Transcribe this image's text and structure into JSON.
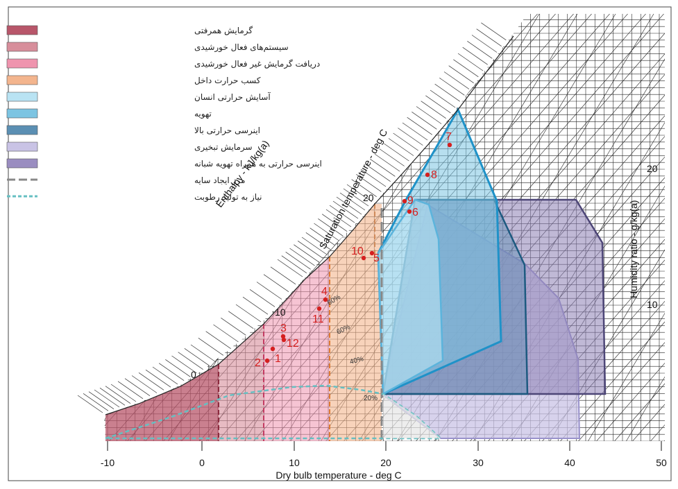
{
  "axes": {
    "x_title": "Dry bulb temperature - deg C",
    "x_ticks": [
      "-10",
      "0",
      "10",
      "20",
      "30",
      "40",
      "50"
    ],
    "enthalpy_title": "Enthalpy - kJ/kg(a)",
    "saturation_title": "Saturation temperature - deg C",
    "humidity_title": "Humidity ratio - g/kg(a)",
    "saturation_ticks": [
      "0",
      "10",
      "20"
    ],
    "humidity_ticks": [
      "10",
      "20"
    ]
  },
  "rh_labels": [
    "80%",
    "60%",
    "40%",
    "20%"
  ],
  "legend": [
    {
      "label": "گرمایش همرفتی",
      "color": "#b8566a"
    },
    {
      "label": "سیستم‌های فعال خورشیدی",
      "color": "#d78e9b"
    },
    {
      "label": "دریافت گرمایش غیر فعال خورشیدی",
      "color": "#ef94ae"
    },
    {
      "label": "کسب حرارت داخل",
      "color": "#f3b58e"
    },
    {
      "label": "آسایش حرارتی انسان",
      "color": "#b9e3f3"
    },
    {
      "label": "تهویه",
      "color": "#7cc4e2"
    },
    {
      "label": "اینرسی حرارتی بالا",
      "color": "#5b8fb3"
    },
    {
      "label": "سرمایش تبخیری",
      "color": "#c9c3e5"
    },
    {
      "label": "اینرسی حرارتی به همراه تهویه شبانه",
      "color": "#9a8dc0"
    },
    {
      "label": "مرز ایجاد سایه",
      "color": "#888888"
    },
    {
      "label": "نیاز به تولید رطوبت",
      "color": "#66bfc2"
    }
  ],
  "points": [
    "1",
    "2",
    "3",
    "4",
    "5",
    "6",
    "7",
    "8",
    "9",
    "10",
    "11",
    "12"
  ]
}
